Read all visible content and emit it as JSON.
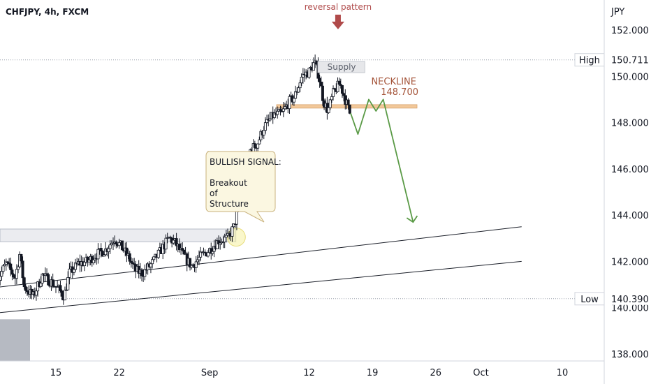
{
  "symbol_line": "CHFJPY, 4h, FXCM",
  "currency": "JPY",
  "hi_lo": {
    "high_label": "High",
    "high_value": "150.711",
    "low_label": "Low",
    "low_value": "140.390"
  },
  "annotations": {
    "reversal": "reversal pattern",
    "supply": "Supply",
    "neckline_title": "NECKLINE",
    "neckline_value": "148.700",
    "bullish": [
      "BULLISH SIGNAL:",
      "",
      "Breakout",
      "of",
      "Structure"
    ]
  },
  "colors": {
    "up": "#131722",
    "down": "#131722",
    "projection": "#5a9a46",
    "arrow": "#b04a4a",
    "neckline": "#f2c89a",
    "neckline_text": "#a5553a",
    "label_box": "#fbf7e1",
    "label_border": "#c9b27c"
  },
  "chart_data": {
    "type": "candlestick",
    "ylim": [
      137.6,
      153.0
    ],
    "y_ticks": [
      "152.000",
      "150.000",
      "148.000",
      "146.000",
      "144.000",
      "142.000",
      "140.000",
      "138.000"
    ],
    "x_ticks": [
      {
        "label": "15",
        "day": 15
      },
      {
        "label": "22",
        "day": 22
      },
      {
        "label": "Sep",
        "day": 32
      },
      {
        "label": "12",
        "day": 43
      },
      {
        "label": "19",
        "day": 50
      },
      {
        "label": "26",
        "day": 57
      },
      {
        "label": "Oct",
        "day": 62
      },
      {
        "label": "10",
        "day": 71
      }
    ],
    "xlim": [
      8.5,
      75.5
    ],
    "high_level": 150.711,
    "low_level": 140.39,
    "neckline": 148.7,
    "price_path": [
      [
        8.5,
        141.2
      ],
      [
        9.5,
        141.9
      ],
      [
        10.5,
        141.3
      ],
      [
        11.0,
        142.3
      ],
      [
        11.5,
        140.9
      ],
      [
        12.5,
        140.5
      ],
      [
        13.5,
        141.4
      ],
      [
        14.5,
        141.1
      ],
      [
        15.3,
        140.8
      ],
      [
        15.9,
        140.5
      ],
      [
        16.5,
        141.5
      ],
      [
        17.5,
        141.9
      ],
      [
        18.5,
        142.0
      ],
      [
        19.5,
        142.3
      ],
      [
        20.5,
        142.5
      ],
      [
        21.5,
        143.0
      ],
      [
        22.3,
        142.6
      ],
      [
        23.0,
        142.2
      ],
      [
        23.8,
        141.6
      ],
      [
        24.6,
        141.5
      ],
      [
        25.6,
        141.9
      ],
      [
        26.5,
        142.4
      ],
      [
        27.5,
        143.0
      ],
      [
        28.2,
        142.8
      ],
      [
        29.0,
        142.3
      ],
      [
        30.0,
        141.8
      ],
      [
        31.0,
        142.2
      ],
      [
        32.0,
        142.5
      ],
      [
        33.0,
        142.9
      ],
      [
        34.0,
        143.0
      ],
      [
        34.7,
        143.5
      ],
      [
        35.3,
        144.6
      ],
      [
        35.9,
        145.7
      ],
      [
        36.5,
        146.8
      ],
      [
        37.3,
        147.1
      ],
      [
        38.0,
        147.8
      ],
      [
        39.0,
        148.3
      ],
      [
        40.0,
        148.4
      ],
      [
        40.8,
        148.9
      ],
      [
        41.4,
        149.1
      ],
      [
        42.2,
        150.0
      ],
      [
        43.0,
        150.2
      ],
      [
        43.6,
        150.6
      ],
      [
        44.1,
        150.0
      ],
      [
        44.6,
        148.9
      ],
      [
        45.1,
        148.5
      ],
      [
        45.7,
        149.3
      ],
      [
        46.4,
        149.7
      ],
      [
        47.0,
        149.0
      ],
      [
        47.6,
        148.3
      ]
    ],
    "projection": [
      [
        47.6,
        148.4
      ],
      [
        48.4,
        147.5
      ],
      [
        49.6,
        149.0
      ],
      [
        50.4,
        148.5
      ],
      [
        51.2,
        149.0
      ],
      [
        54.5,
        143.7
      ]
    ],
    "trendlines": [
      {
        "from": [
          0,
          140.5
        ],
        "to": [
          66.5,
          143.5
        ]
      },
      {
        "from": [
          0,
          139.45
        ],
        "to": [
          66.5,
          142.0
        ]
      }
    ],
    "zones": {
      "demand_top": 143.4,
      "demand_bottom": 142.85,
      "supply_price": 150.4,
      "supply_day": [
        44.0,
        49.2
      ]
    }
  }
}
